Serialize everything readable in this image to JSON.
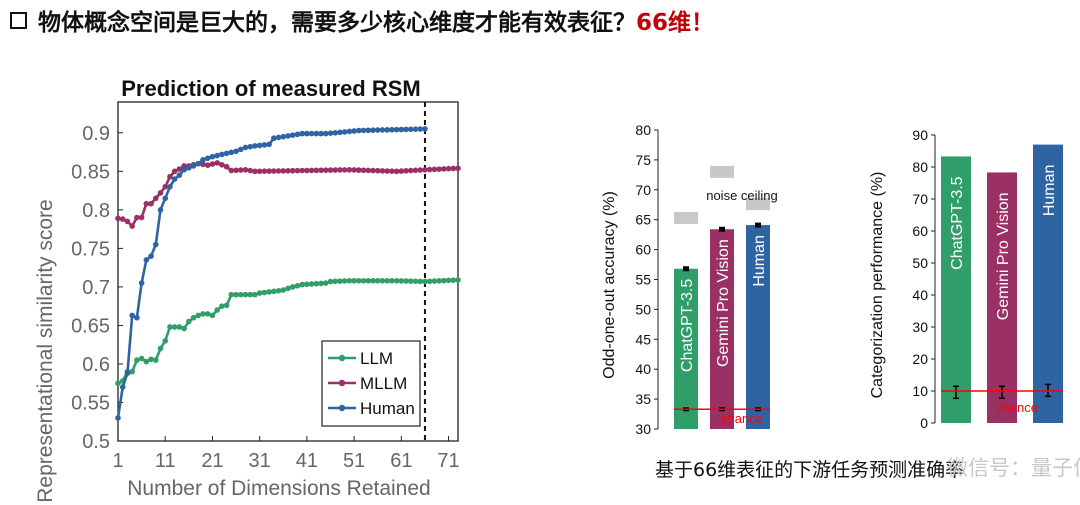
{
  "headline": {
    "text": "物体概念空间是巨大的，需要多少核心维度才能有效表征？",
    "highlight": "66维！"
  },
  "caption": "基于66维表征的下游任务预测准确率",
  "watermark": "微信号：量子位",
  "colors": {
    "llm": "#2f9e68",
    "mllm": "#9b3065",
    "human": "#2f64a3",
    "chance": "#ff0000",
    "noise": "#c8c8c8"
  },
  "chart_data": [
    {
      "type": "line",
      "title": "Prediction of measured RSM",
      "xlabel": "Number of Dimensions Retained",
      "ylabel": "Representational similarity score",
      "xlim": [
        1,
        73
      ],
      "ylim": [
        0.5,
        0.94
      ],
      "xticks": [
        1,
        11,
        21,
        31,
        41,
        51,
        61,
        71
      ],
      "yticks": [
        0.5,
        0.55,
        0.6,
        0.65,
        0.7,
        0.75,
        0.8,
        0.85,
        0.9
      ],
      "vline": 66,
      "legend_position": "bottom-right",
      "series": [
        {
          "name": "LLM",
          "color": "#2f9e68",
          "extent": 73,
          "anchors": [
            [
              1,
              0.575
            ],
            [
              2,
              0.578
            ],
            [
              3,
              0.59
            ],
            [
              4,
              0.59
            ],
            [
              5,
              0.605
            ],
            [
              6,
              0.607
            ],
            [
              7,
              0.603
            ],
            [
              8,
              0.606
            ],
            [
              9,
              0.605
            ],
            [
              10,
              0.62
            ],
            [
              11,
              0.63
            ],
            [
              12,
              0.648
            ],
            [
              13,
              0.648
            ],
            [
              14,
              0.648
            ],
            [
              15,
              0.646
            ],
            [
              16,
              0.655
            ],
            [
              17,
              0.66
            ],
            [
              18,
              0.663
            ],
            [
              19,
              0.665
            ],
            [
              20,
              0.665
            ],
            [
              21,
              0.663
            ],
            [
              22,
              0.67
            ],
            [
              23,
              0.675
            ],
            [
              24,
              0.676
            ],
            [
              25,
              0.69
            ],
            [
              26,
              0.69
            ],
            [
              30,
              0.69
            ],
            [
              31,
              0.692
            ],
            [
              35,
              0.695
            ],
            [
              36,
              0.696
            ],
            [
              38,
              0.7
            ],
            [
              40,
              0.703
            ],
            [
              45,
              0.705
            ],
            [
              46,
              0.707
            ],
            [
              50,
              0.708
            ],
            [
              60,
              0.708
            ],
            [
              66,
              0.707
            ],
            [
              73,
              0.709
            ]
          ]
        },
        {
          "name": "MLLM",
          "color": "#9b3065",
          "extent": 73,
          "anchors": [
            [
              1,
              0.789
            ],
            [
              2,
              0.788
            ],
            [
              3,
              0.785
            ],
            [
              4,
              0.779
            ],
            [
              5,
              0.79
            ],
            [
              6,
              0.79
            ],
            [
              7,
              0.808
            ],
            [
              8,
              0.808
            ],
            [
              9,
              0.815
            ],
            [
              10,
              0.822
            ],
            [
              11,
              0.83
            ],
            [
              12,
              0.843
            ],
            [
              13,
              0.85
            ],
            [
              14,
              0.853
            ],
            [
              15,
              0.857
            ],
            [
              16,
              0.857
            ],
            [
              18,
              0.86
            ],
            [
              20,
              0.858
            ],
            [
              22,
              0.861
            ],
            [
              24,
              0.856
            ],
            [
              25,
              0.851
            ],
            [
              28,
              0.852
            ],
            [
              30,
              0.85
            ],
            [
              40,
              0.851
            ],
            [
              50,
              0.852
            ],
            [
              60,
              0.85
            ],
            [
              66,
              0.852
            ],
            [
              73,
              0.854
            ]
          ]
        },
        {
          "name": "Human",
          "color": "#2f64a3",
          "extent": 66,
          "anchors": [
            [
              1,
              0.53
            ],
            [
              2,
              0.57
            ],
            [
              3,
              0.588
            ],
            [
              4,
              0.663
            ],
            [
              5,
              0.66
            ],
            [
              6,
              0.705
            ],
            [
              7,
              0.735
            ],
            [
              8,
              0.74
            ],
            [
              9,
              0.755
            ],
            [
              10,
              0.8
            ],
            [
              11,
              0.815
            ],
            [
              12,
              0.83
            ],
            [
              13,
              0.84
            ],
            [
              14,
              0.845
            ],
            [
              15,
              0.852
            ],
            [
              17,
              0.857
            ],
            [
              18,
              0.86
            ],
            [
              19,
              0.865
            ],
            [
              20,
              0.867
            ],
            [
              21,
              0.869
            ],
            [
              23,
              0.872
            ],
            [
              26,
              0.876
            ],
            [
              28,
              0.881
            ],
            [
              30,
              0.883
            ],
            [
              33,
              0.885
            ],
            [
              34,
              0.893
            ],
            [
              36,
              0.895
            ],
            [
              38,
              0.897
            ],
            [
              40,
              0.899
            ],
            [
              45,
              0.899
            ],
            [
              47,
              0.9
            ],
            [
              52,
              0.903
            ],
            [
              66,
              0.905
            ]
          ]
        }
      ],
      "legend": [
        "LLM",
        "MLLM",
        "Human"
      ]
    },
    {
      "type": "bar",
      "ylabel": "Odd-one-out accuracy (%)",
      "ylim": [
        30,
        80
      ],
      "yticks": [
        30,
        35,
        40,
        45,
        50,
        55,
        60,
        65,
        70,
        75,
        80
      ],
      "categories": [
        "ChatGPT-3.5",
        "Gemini Pro Vision",
        "Human"
      ],
      "values": [
        56.8,
        63.4,
        64.1
      ],
      "noise_ceiling": [
        65.3,
        73.0,
        67.6
      ],
      "chance": 33.3,
      "annotations": {
        "noise": "noise ceiling",
        "chance": "chance"
      }
    },
    {
      "type": "bar",
      "ylabel": "Categorization performance (%)",
      "ylim": [
        0,
        90
      ],
      "yticks": [
        0,
        10,
        20,
        30,
        40,
        50,
        60,
        70,
        80,
        90
      ],
      "categories": [
        "ChatGPT-3.5",
        "Gemini Pro Vision",
        "Human"
      ],
      "values": [
        83.3,
        78.3,
        87.0
      ],
      "chance_markers": [
        9.6,
        9.6,
        10.2
      ],
      "chance": 10,
      "annotations": {
        "chance": "chance"
      }
    }
  ]
}
